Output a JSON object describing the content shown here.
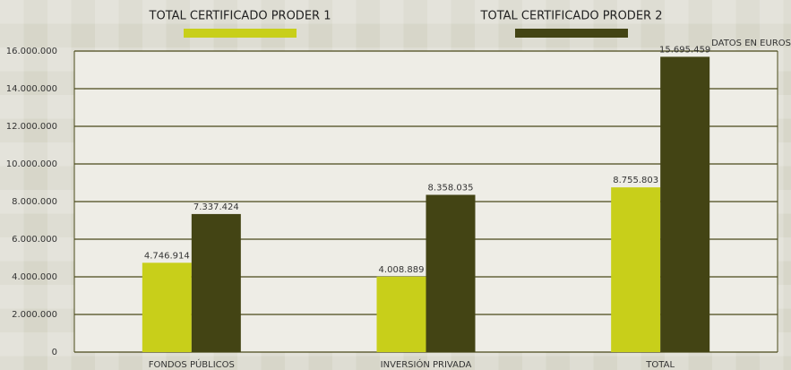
{
  "chart_data": {
    "type": "bar",
    "annotation": "DATOS EN EUROS",
    "categories": [
      "FONDOS PÚBLICOS",
      "INVERSIÓN PRIVADA",
      "TOTAL"
    ],
    "series": [
      {
        "name": "TOTAL CERTIFICADO PRODER 1",
        "color": "#c8cf1a",
        "values": [
          4746914,
          4008889,
          8755803
        ],
        "value_labels": [
          "4.746.914",
          "4.008.889",
          "8.755.803"
        ]
      },
      {
        "name": "TOTAL CERTIFICADO PRODER 2",
        "color": "#434414",
        "values": [
          7337424,
          8358035,
          15695459
        ],
        "value_labels": [
          "7.337.424",
          "8.358.035",
          "15.695.459"
        ]
      }
    ],
    "ylim": [
      0,
      16000000
    ],
    "yticks": [
      0,
      {
        "value": 2000000,
        "label": "2.000.000"
      },
      {
        "value": 4000000,
        "label": "4.000.000"
      },
      {
        "value": 6000000,
        "label": "6.000.000"
      },
      {
        "value": 8000000,
        "label": "8.000.000"
      },
      {
        "value": 10000000,
        "label": "10.000.000"
      },
      {
        "value": 12000000,
        "label": "12.000.000"
      },
      {
        "value": 14000000,
        "label": "14.000.000"
      },
      {
        "value": 16000000,
        "label": "16.000.000"
      }
    ],
    "grid": true
  }
}
